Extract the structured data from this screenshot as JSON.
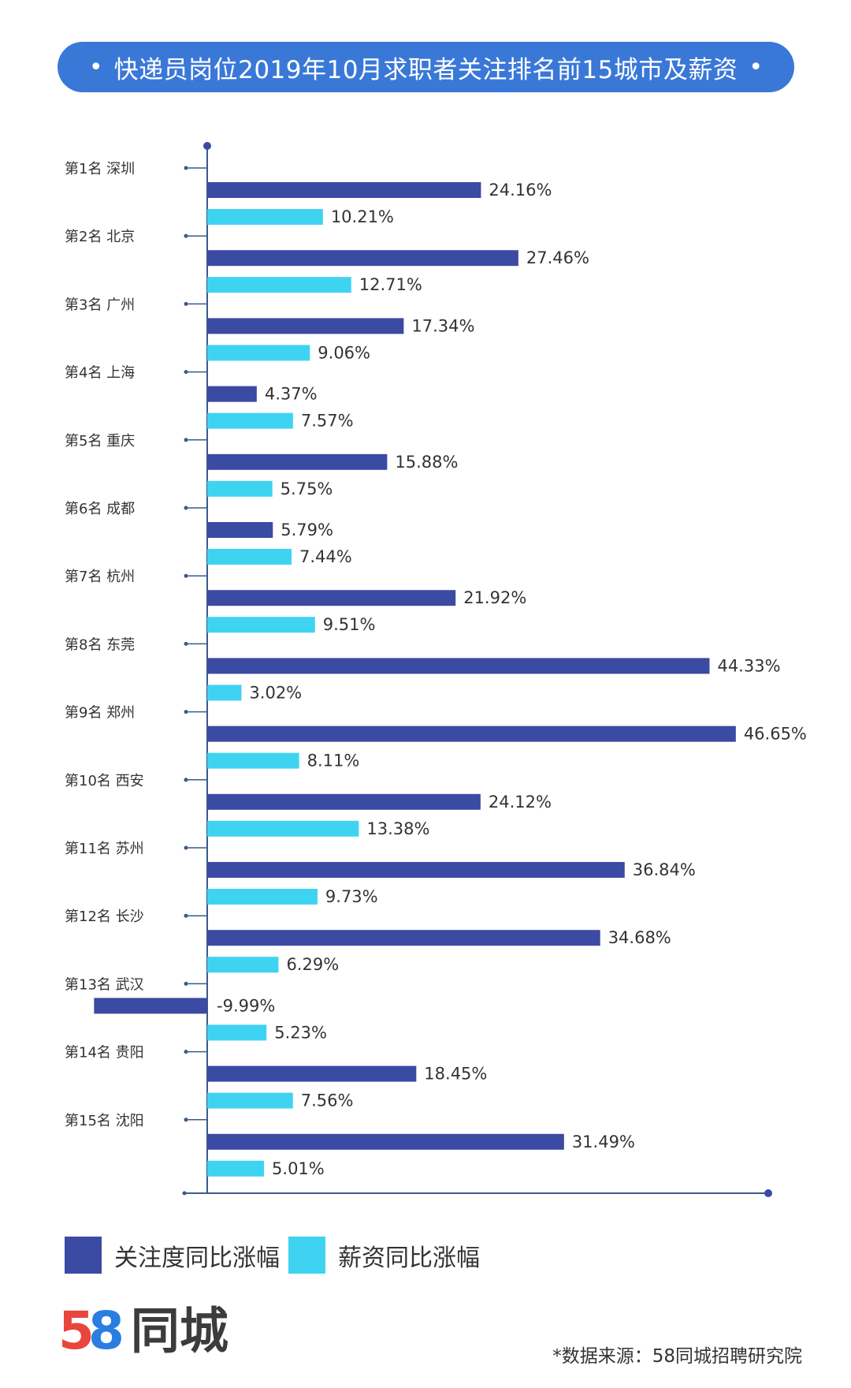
{
  "title": "快递员岗位2019年10月求职者关注排名前15城市及薪资",
  "title_dots": "•",
  "chart_data": {
    "type": "bar",
    "orientation": "horizontal",
    "categories": [
      "第1名 深圳",
      "第2名 北京",
      "第3名 广州",
      "第4名 上海",
      "第5名 重庆",
      "第6名 成都",
      "第7名 杭州",
      "第8名 东莞",
      "第9名 郑州",
      "第10名 西安",
      "第11名 苏州",
      "第12名 长沙",
      "第13名 武汉",
      "第14名 贵阳",
      "第15名 沈阳"
    ],
    "series": [
      {
        "name": "关注度同比涨幅",
        "color": "#3b4aa3",
        "values": [
          24.16,
          27.46,
          17.34,
          4.37,
          15.88,
          5.79,
          21.92,
          44.33,
          46.65,
          24.12,
          36.84,
          34.68,
          -9.99,
          18.45,
          31.49
        ],
        "labels": [
          "24.16%",
          "27.46%",
          "17.34%",
          "4.37%",
          "15.88%",
          "5.79%",
          "21.92%",
          "44.33%",
          "46.65%",
          "24.12%",
          "36.84%",
          "34.68%",
          "-9.99%",
          "18.45%",
          "31.49%"
        ]
      },
      {
        "name": "薪资同比涨幅",
        "color": "#3fd3f2",
        "values": [
          10.21,
          12.71,
          9.06,
          7.57,
          5.75,
          7.44,
          9.51,
          3.02,
          8.11,
          13.38,
          9.73,
          6.29,
          5.23,
          7.56,
          5.01
        ],
        "labels": [
          "10.21%",
          "12.71%",
          "9.06%",
          "7.57%",
          "5.75%",
          "7.44%",
          "9.51%",
          "3.02%",
          "8.11%",
          "13.38%",
          "9.73%",
          "6.29%",
          "5.23%",
          "7.56%",
          "5.01%"
        ]
      }
    ],
    "axis_color": "#3a5a8a"
  },
  "legend": [
    {
      "label": "关注度同比涨幅",
      "color": "#3b4aa3"
    },
    {
      "label": "薪资同比涨幅",
      "color": "#3fd3f2"
    }
  ],
  "logo": {
    "digit1": "5",
    "digit2": "8",
    "text": "同城"
  },
  "source": "*数据来源：58同城招聘研究院"
}
